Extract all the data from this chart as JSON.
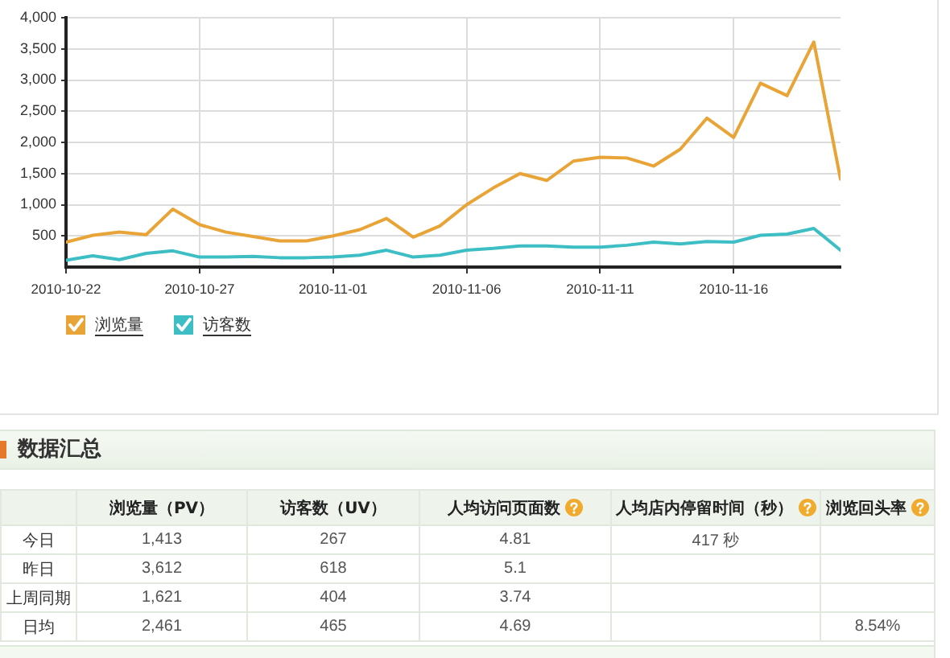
{
  "chart_data": [
    {
      "type": "line",
      "x": [
        "2010-10-22",
        "2010-10-23",
        "2010-10-24",
        "2010-10-25",
        "2010-10-26",
        "2010-10-27",
        "2010-10-28",
        "2010-10-29",
        "2010-10-30",
        "2010-10-31",
        "2010-11-01",
        "2010-11-02",
        "2010-11-03",
        "2010-11-04",
        "2010-11-05",
        "2010-11-06",
        "2010-11-07",
        "2010-11-08",
        "2010-11-09",
        "2010-11-10",
        "2010-11-11",
        "2010-11-12",
        "2010-11-13",
        "2010-11-14",
        "2010-11-15",
        "2010-11-16",
        "2010-11-17",
        "2010-11-18",
        "2010-11-19",
        "2010-11-20"
      ],
      "series": [
        {
          "name": "浏览量",
          "color": "#e9a437",
          "values": [
            400,
            510,
            560,
            520,
            930,
            680,
            560,
            490,
            420,
            420,
            500,
            600,
            780,
            480,
            660,
            1000,
            1270,
            1500,
            1390,
            1700,
            1760,
            1750,
            1620,
            1890,
            2390,
            2080,
            2950,
            2750,
            3610,
            1410
          ]
        },
        {
          "name": "访客数",
          "color": "#3dbec4",
          "values": [
            110,
            180,
            120,
            220,
            260,
            160,
            160,
            170,
            150,
            150,
            160,
            190,
            270,
            160,
            190,
            270,
            300,
            340,
            340,
            320,
            320,
            350,
            400,
            370,
            410,
            400,
            510,
            530,
            620,
            270
          ]
        }
      ],
      "xlim": [
        "2010-10-22",
        "2010-11-20"
      ],
      "xticks": [
        "2010-10-22",
        "2010-10-27",
        "2010-11-01",
        "2010-11-06",
        "2010-11-11",
        "2010-11-16"
      ],
      "ylim": [
        0,
        4000
      ],
      "yticks": [
        500,
        {
          "value": 1000,
          "label": "1,000"
        },
        {
          "value": 1500,
          "label": "1,500"
        },
        {
          "value": 2000,
          "label": "2,000"
        },
        {
          "value": 2500,
          "label": "2,500"
        },
        {
          "value": 3000,
          "label": "3,000"
        },
        {
          "value": 3500,
          "label": "3,500"
        },
        {
          "value": 4000,
          "label": "4,000"
        }
      ],
      "grid": true,
      "legend": "bottom left",
      "marker": "none",
      "line_style": "solid"
    },
    {
      "type": "other",
      "title": "数据汇总",
      "categories": [
        "浏览量（PV）",
        "访客数（UV）",
        "人均访问页面数",
        "人均店内停留时间（秒）",
        "浏览回头率"
      ],
      "series": [
        {
          "name": "今日",
          "values": [
            1413,
            267,
            4.81,
            417,
            null
          ],
          "value_labels": [
            "1,413",
            "267",
            "4.81",
            "417 秒",
            null
          ]
        },
        {
          "name": "昨日",
          "values": [
            3612,
            618,
            5.1,
            null,
            null
          ],
          "value_labels": [
            "3,612",
            "618",
            "5.1",
            null,
            null
          ]
        },
        {
          "name": "上周同期",
          "values": [
            1621,
            404,
            3.74,
            null,
            null
          ],
          "value_labels": [
            "1,621",
            "404",
            "3.74",
            null,
            null
          ]
        },
        {
          "name": "日均",
          "values": [
            2461,
            465,
            4.69,
            null,
            8.54
          ],
          "value_labels": [
            "2,461",
            "465",
            "4.69",
            null,
            "8.54%"
          ]
        }
      ]
    }
  ]
}
